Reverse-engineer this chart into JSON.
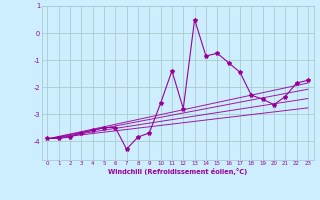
{
  "xlabel": "Windchill (Refroidissement éolien,°C)",
  "background_color": "#cceeff",
  "grid_color": "#aacccc",
  "line_color": "#990099",
  "x_values": [
    0,
    1,
    2,
    3,
    4,
    5,
    6,
    7,
    8,
    9,
    10,
    11,
    12,
    13,
    14,
    15,
    16,
    17,
    18,
    19,
    20,
    21,
    22,
    23
  ],
  "main_line": [
    -3.9,
    -3.9,
    -3.85,
    -3.7,
    -3.6,
    -3.5,
    -3.5,
    -4.3,
    -3.85,
    -3.7,
    -2.6,
    -1.4,
    -2.8,
    0.5,
    -0.85,
    -0.75,
    -1.1,
    -1.45,
    -2.3,
    -2.45,
    -2.65,
    -2.35,
    -1.85,
    -1.75
  ],
  "band_lines": [
    [
      -3.92,
      -3.83,
      -3.74,
      -3.65,
      -3.56,
      -3.47,
      -3.38,
      -3.29,
      -3.2,
      -3.11,
      -3.02,
      -2.93,
      -2.84,
      -2.75,
      -2.66,
      -2.57,
      -2.48,
      -2.39,
      -2.3,
      -2.21,
      -2.12,
      -2.03,
      -1.94,
      -1.85
    ],
    [
      -3.92,
      -3.84,
      -3.76,
      -3.68,
      -3.6,
      -3.52,
      -3.44,
      -3.36,
      -3.28,
      -3.2,
      -3.12,
      -3.04,
      -2.96,
      -2.88,
      -2.8,
      -2.72,
      -2.64,
      -2.56,
      -2.48,
      -2.4,
      -2.32,
      -2.24,
      -2.16,
      -2.08
    ],
    [
      -3.92,
      -3.855,
      -3.79,
      -3.725,
      -3.66,
      -3.595,
      -3.53,
      -3.465,
      -3.4,
      -3.335,
      -3.27,
      -3.205,
      -3.14,
      -3.075,
      -3.01,
      -2.945,
      -2.88,
      -2.815,
      -2.75,
      -2.685,
      -2.62,
      -2.555,
      -2.49,
      -2.425
    ],
    [
      -3.92,
      -3.87,
      -3.82,
      -3.77,
      -3.72,
      -3.67,
      -3.62,
      -3.57,
      -3.52,
      -3.47,
      -3.42,
      -3.37,
      -3.32,
      -3.27,
      -3.22,
      -3.17,
      -3.12,
      -3.07,
      -3.02,
      -2.97,
      -2.92,
      -2.87,
      -2.82,
      -2.77
    ]
  ],
  "ylim": [
    -4.7,
    1.0
  ],
  "xlim": [
    -0.5,
    23.5
  ],
  "yticks": [
    1,
    0,
    -1,
    -2,
    -3,
    -4
  ],
  "xticks": [
    0,
    1,
    2,
    3,
    4,
    5,
    6,
    7,
    8,
    9,
    10,
    11,
    12,
    13,
    14,
    15,
    16,
    17,
    18,
    19,
    20,
    21,
    22,
    23
  ]
}
